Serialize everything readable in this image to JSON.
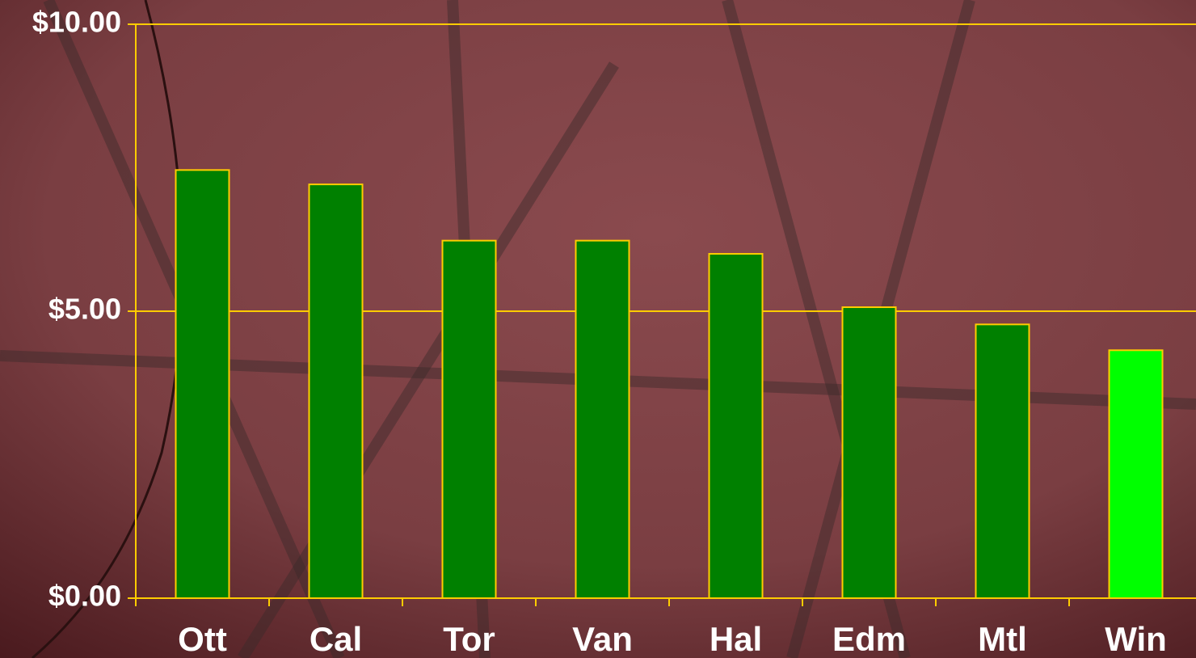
{
  "chart_data": {
    "type": "bar",
    "categories": [
      "Ott",
      "Cal",
      "Tor",
      "Van",
      "Hal",
      "Edm",
      "Mtl",
      "Win"
    ],
    "values": [
      7.46,
      7.21,
      6.23,
      6.23,
      6.0,
      5.07,
      4.77,
      4.32
    ],
    "colors": [
      "#008000",
      "#008000",
      "#008000",
      "#008000",
      "#008000",
      "#008000",
      "#008000",
      "#00ff00"
    ],
    "ylim": [
      0,
      10
    ],
    "yticks": [
      {
        "value": 0,
        "label": "$0.00"
      },
      {
        "value": 5,
        "label": "$5.00"
      },
      {
        "value": 10,
        "label": "$10.00"
      }
    ],
    "grid": true
  }
}
